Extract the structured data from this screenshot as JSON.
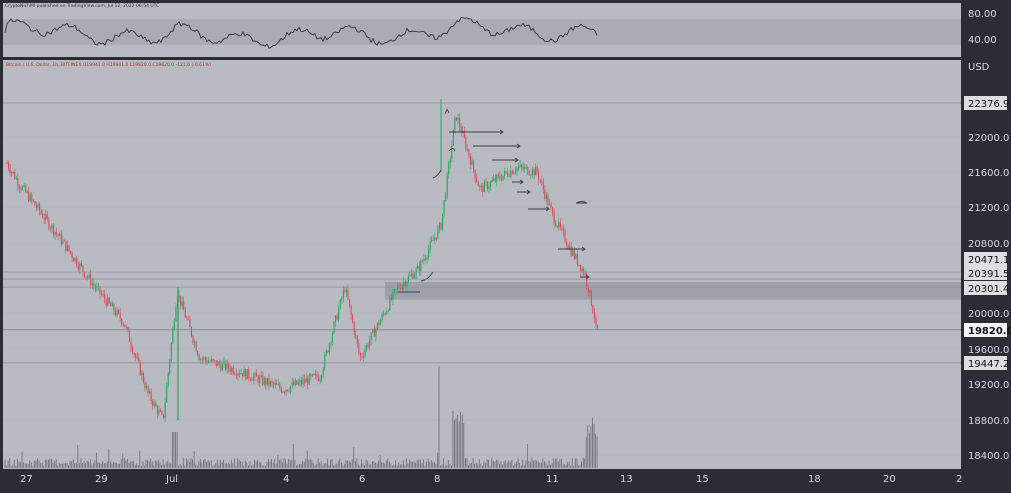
{
  "header": {
    "publisher": "CryptoNichMI published on TradingView.com, Jul 12, 2022 06:54 UTC",
    "symbol_line": "Bitcoin / U.S. Dollar, 1h, BITFINEX O19941.0 H19941.0 L19820.0 C19820.0 -121.0 (-0.61%)"
  },
  "indicator": {
    "ticks": [
      "80.00",
      "40.00"
    ]
  },
  "price_axis": {
    "currency": "USD",
    "ticks": [
      "22000.0",
      "21600.0",
      "21200.0",
      "20800.0",
      "20000.0",
      "19600.0",
      "19200.0",
      "18800.0",
      "18400.0"
    ],
    "levels": [
      "22376.9",
      "20471.1",
      "20391.5",
      "20301.4",
      "19447.2"
    ],
    "current": "19820.0"
  },
  "time_axis": {
    "ticks": [
      "27",
      "29",
      "Jul",
      "4",
      "6",
      "8",
      "11",
      "13",
      "15",
      "18",
      "20",
      "2"
    ]
  },
  "colors": {
    "background": "#2a2d33",
    "up": "#26a65b",
    "down": "#e0475a",
    "zone": "#6f737d",
    "indicator_band": "#7b7f89"
  },
  "chart_data": {
    "type": "candlestick",
    "title": "Bitcoin / U.S. Dollar, 1h, BITFINEX",
    "ylim": [
      18300,
      22650
    ],
    "ohlc_path": [
      [
        "Jun 26 18:00",
        21700
      ],
      [
        "Jun 27",
        21450
      ],
      [
        "Jun 28",
        20900
      ],
      [
        "Jun 29",
        20300
      ],
      [
        "Jun 30",
        19900
      ],
      [
        "Jun 30 12:00",
        19100
      ],
      [
        "Jun 30 18:00",
        18800
      ],
      [
        "Jul 1 00:00",
        20250
      ],
      [
        "Jul 1 06:00",
        19500
      ],
      [
        "Jul 2",
        19350
      ],
      [
        "Jul 3",
        19150
      ],
      [
        "Jul 4",
        19300
      ],
      [
        "Jul 5",
        20300
      ],
      [
        "Jul 5 18:00",
        19500
      ],
      [
        "Jul 6",
        20300
      ],
      [
        "Jul 7",
        20500
      ],
      [
        "Jul 7 18:00",
        21000
      ],
      [
        "Jul 8",
        22250
      ],
      [
        "Jul 8 12:00",
        21400
      ],
      [
        "Jul 9",
        21650
      ],
      [
        "Jul 10",
        21600
      ],
      [
        "Jul 10 12:00",
        21100
      ],
      [
        "Jul 11",
        20700
      ],
      [
        "Jul 11 18:00",
        20450
      ],
      [
        "Jul 12",
        19950
      ],
      [
        "Jul 12 06:00",
        19820
      ]
    ],
    "last_close": 19820.0,
    "zone": [
      20160,
      20360
    ],
    "indicator_range": [
      40,
      80
    ]
  }
}
